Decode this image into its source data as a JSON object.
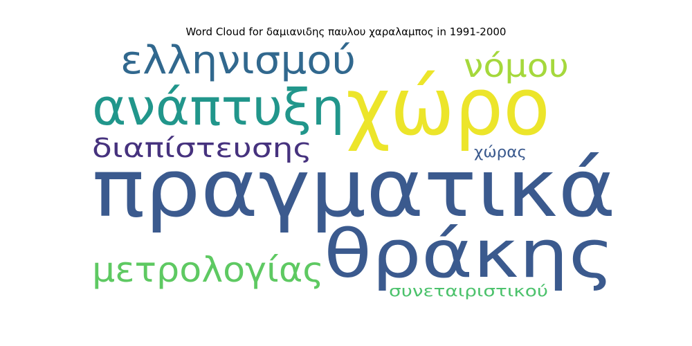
{
  "title": "Word Cloud for δαμιανιδης παυλου χαραλαμπος in 1991-2000",
  "chart_data": {
    "type": "wordcloud",
    "title": "Word Cloud for δαμιανιδης παυλου χαραλαμπος in 1991-2000",
    "words": [
      {
        "text": "πραγματικά",
        "color": "#3b5a8e"
      },
      {
        "text": "χώρο",
        "color": "#ece52a"
      },
      {
        "text": "θράκης",
        "color": "#3b5a8e"
      },
      {
        "text": "ανάπτυξη",
        "color": "#21968b"
      },
      {
        "text": "ελληνισμού",
        "color": "#31688e"
      },
      {
        "text": "μετρολογίας",
        "color": "#5ec962"
      },
      {
        "text": "νόμου",
        "color": "#a5d83c"
      },
      {
        "text": "διαπίστευσης",
        "color": "#46327e"
      },
      {
        "text": "συνεταιριστικού",
        "color": "#4cc26c"
      },
      {
        "text": "χώρας",
        "color": "#3b5a8e"
      }
    ]
  }
}
